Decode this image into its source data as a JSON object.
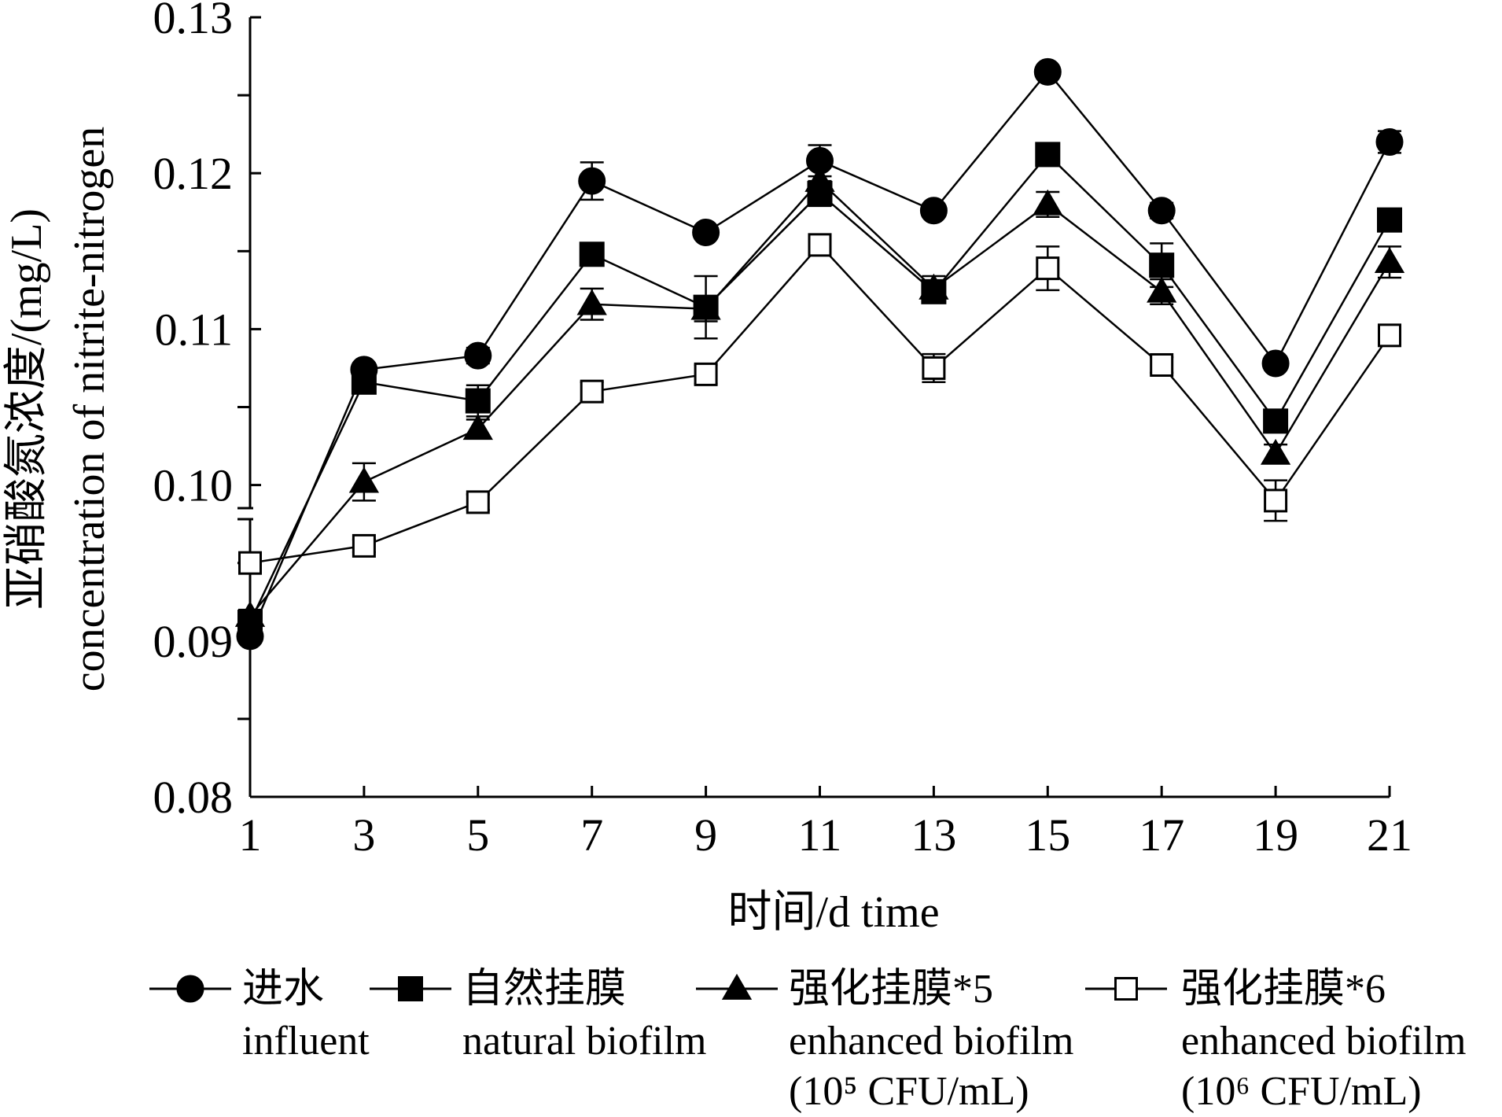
{
  "chart_data": {
    "type": "line",
    "xlabel": "时间/d time",
    "ylabel_line1": "亚硝酸氮浓度/(mg/L)",
    "ylabel_line2": "concentration of nitrite-nitrogen",
    "x": [
      1,
      3,
      5,
      7,
      9,
      11,
      13,
      15,
      17,
      19,
      21
    ],
    "x_ticks": [
      "1",
      "3",
      "5",
      "7",
      "9",
      "11",
      "13",
      "15",
      "17",
      "19",
      "21"
    ],
    "y_ticks": [
      "0.08",
      "0.09",
      "0.10",
      "0.11",
      "0.12",
      "0.13"
    ],
    "ylim": [
      0.08,
      0.13
    ],
    "axis_break": "between 0.09 and 0.10",
    "grid": false,
    "legend_position": "bottom",
    "series": [
      {
        "name": "进水",
        "name_en": "influent",
        "name_extra": "",
        "marker": "filled-circle",
        "values": [
          0.0903,
          0.1074,
          0.1083,
          0.1195,
          0.1162,
          0.1208,
          0.1176,
          0.1265,
          0.1176,
          0.1078,
          0.122
        ],
        "errors": [
          0.0004,
          0.0004,
          0.0005,
          0.0012,
          0.0003,
          0.001,
          0.0004,
          0.0004,
          0.0005,
          0.0004,
          0.0007
        ]
      },
      {
        "name": "自然挂膜",
        "name_en": "natural biofilm",
        "name_extra": "",
        "marker": "filled-square",
        "values": [
          0.0912,
          0.1066,
          0.1054,
          0.1148,
          0.1114,
          0.1187,
          0.1124,
          0.1212,
          0.1141,
          0.1041,
          0.117
        ],
        "errors": [
          0.0003,
          0.0004,
          0.001,
          0.0005,
          0.002,
          0.0008,
          0.0006,
          0.0004,
          0.0014,
          0.0006,
          0.0004
        ]
      },
      {
        "name": "强化挂膜*5",
        "name_en": "enhanced biofilm",
        "name_extra": "(10⁵ CFU/mL)",
        "marker": "filled-triangle",
        "values": [
          0.0916,
          0.1002,
          0.1036,
          0.1116,
          0.1113,
          0.1195,
          0.1126,
          0.118,
          0.1124,
          0.102,
          0.1143
        ],
        "errors": [
          0.0004,
          0.0012,
          0.0006,
          0.001,
          0.0008,
          0.0009,
          0.0008,
          0.0008,
          0.0008,
          0.0006,
          0.001
        ]
      },
      {
        "name": "强化挂膜*6",
        "name_en": "enhanced biofilm",
        "name_extra": "(10⁶ CFU/mL)",
        "marker": "open-square",
        "values": [
          0.095,
          0.0961,
          0.0989,
          0.106,
          0.1071,
          0.1154,
          0.1075,
          0.1139,
          0.1077,
          0.099,
          0.1096
        ],
        "errors": [
          0.0004,
          0.0004,
          0.0005,
          0.0006,
          0.0006,
          0.0006,
          0.0009,
          0.0014,
          0.0005,
          0.0013,
          0.0004
        ]
      }
    ]
  }
}
